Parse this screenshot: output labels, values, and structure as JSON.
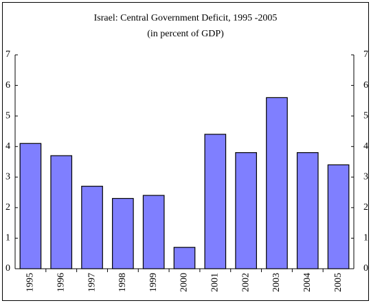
{
  "chart_data": {
    "type": "bar",
    "title": "Israel:  Central Government Deficit, 1995 -2005",
    "subtitle": "(in percent of GDP)",
    "categories": [
      "1995",
      "1996",
      "1997",
      "1998",
      "1999",
      "2000",
      "2001",
      "2002",
      "2003",
      "2004",
      "2005"
    ],
    "values": [
      4.1,
      3.7,
      2.7,
      2.3,
      2.4,
      0.7,
      4.4,
      3.8,
      5.6,
      3.8,
      3.4
    ],
    "color": "#7f7fff",
    "ylim": [
      0,
      7
    ],
    "yticks": [
      0,
      1,
      2,
      3,
      4,
      5,
      6,
      7
    ],
    "y2lim": [
      0,
      7
    ],
    "y2ticks": [
      0,
      1,
      2,
      3,
      4,
      5,
      6,
      7
    ],
    "grid": false
  }
}
